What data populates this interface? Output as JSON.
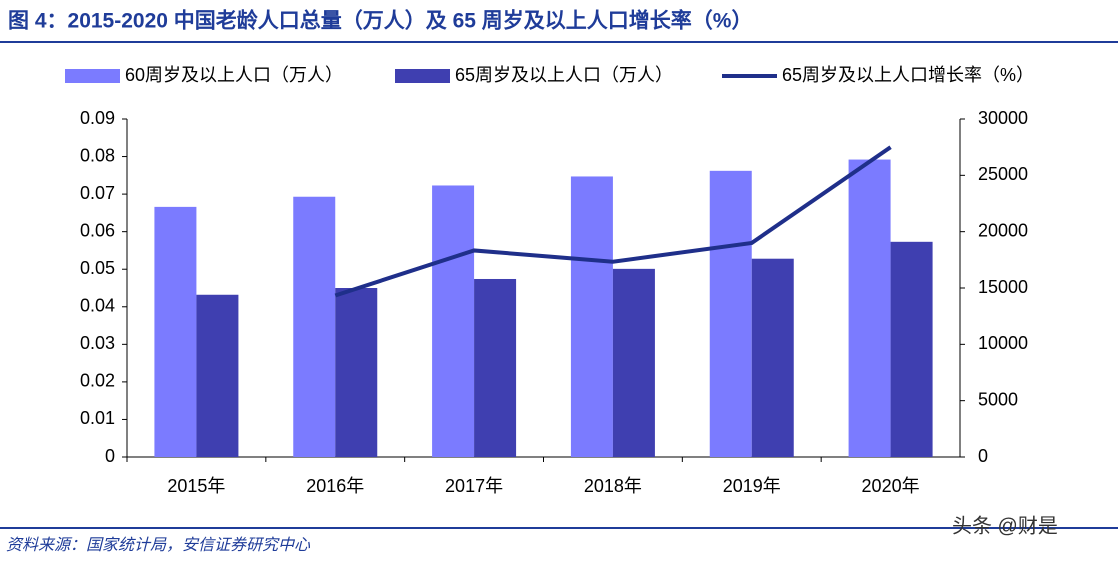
{
  "chart_data": {
    "type": "bar",
    "title": "图 4：2015-2020 中国老龄人口总量（万人）及 65 周岁及以上人口增长率（%）",
    "categories": [
      "2015年",
      "2016年",
      "2017年",
      "2018年",
      "2019年",
      "2020年"
    ],
    "series": [
      {
        "name": "60周岁及以上人口（万人）",
        "type": "bar",
        "axis": "y2",
        "color": "#7b7bff",
        "values": [
          22200,
          23100,
          24100,
          24900,
          25400,
          26400
        ]
      },
      {
        "name": "65周岁及以上人口（万人）",
        "type": "bar",
        "axis": "y2",
        "color": "#3f3fb0",
        "values": [
          14400,
          15000,
          15800,
          16700,
          17600,
          19100
        ]
      },
      {
        "name": "65周岁及以上人口增长率（%）",
        "type": "line",
        "color": "#1f2f8a",
        "values": [
          null,
          0.043,
          0.055,
          0.052,
          0.057,
          0.0825
        ]
      }
    ],
    "ylim": [
      0,
      0.09
    ],
    "yticks": [
      0,
      0.01,
      0.02,
      0.03,
      0.04,
      0.05,
      0.06,
      0.07,
      0.08,
      0.09
    ],
    "y2lim": [
      0,
      30000
    ],
    "y2ticks": [
      0,
      5000,
      10000,
      15000,
      20000,
      25000,
      30000
    ],
    "legend": "top",
    "source": "资料来源：国家统计局，安信证券研究中心",
    "watermark": "头条 @财是"
  }
}
